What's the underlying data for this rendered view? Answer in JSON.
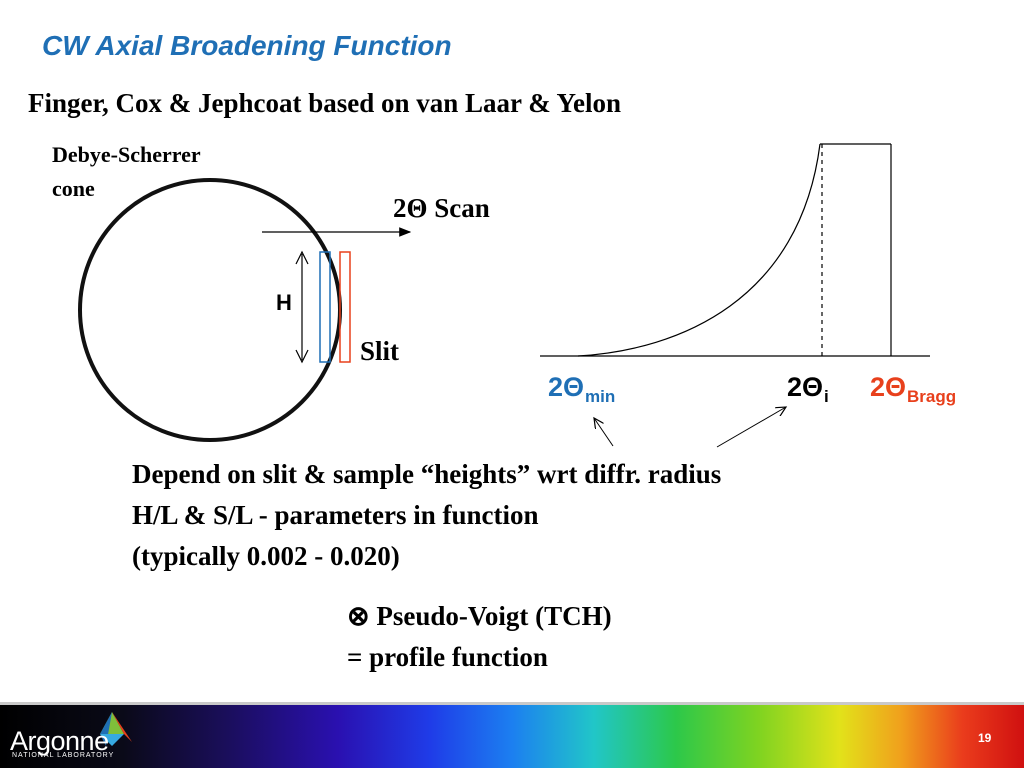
{
  "slide": {
    "title": "CW Axial Broadening Function",
    "subtitle": "Finger, Cox & Jephcoat based on van Laar & Yelon",
    "left_diagram": {
      "cone_label_line1": "Debye-Scherrer",
      "cone_label_line2": "cone",
      "scan_label": "2Θ Scan",
      "height_label": "H",
      "slit_label": "Slit"
    },
    "right_diagram": {
      "label_min": {
        "main": "2Θ",
        "sub": "min"
      },
      "label_i": {
        "main": "2Θ",
        "sub": "i"
      },
      "label_bragg": {
        "main": "2Θ",
        "sub": "Bragg"
      }
    },
    "body": {
      "line1": "Depend on slit & sample “heights” wrt diffr. radius",
      "line2": "H/L & S/L - parameters in function",
      "line3": "(typically 0.002 - 0.020)",
      "convolution_line": "⊗  Pseudo-Voigt (TCH)",
      "profile_line": "= profile function"
    },
    "footer": {
      "logo_text": "Argonne",
      "logo_subtext": "NATIONAL LABORATORY",
      "page_number": "19"
    },
    "colors": {
      "title_blue": "#1f6fb5",
      "bragg_red": "#e8401c",
      "slit_blue": "#1f6fb5",
      "slit_red": "#e8401c"
    }
  }
}
